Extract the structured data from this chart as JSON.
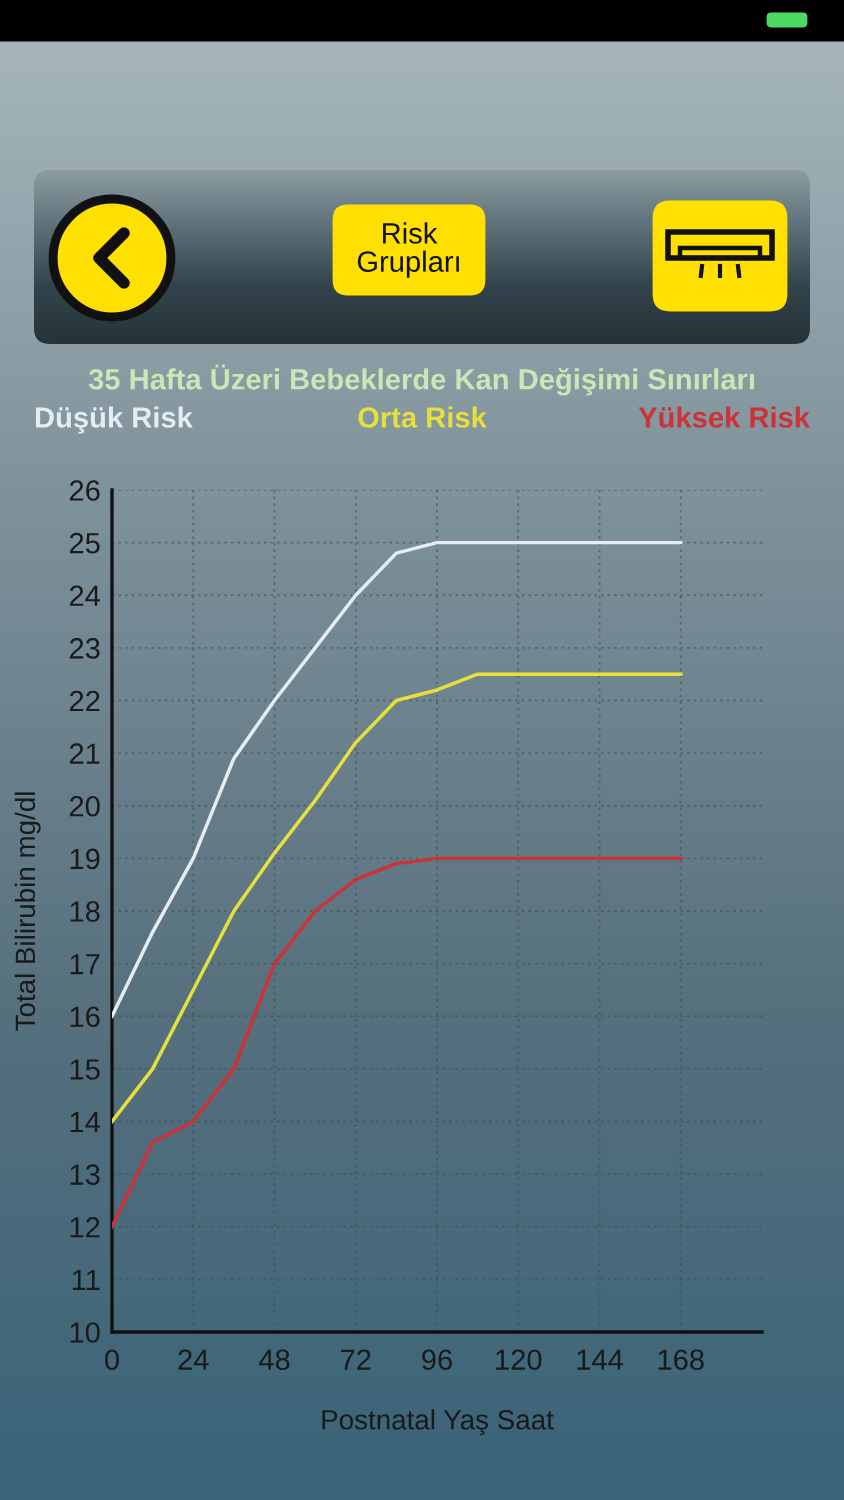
{
  "chart_data": {
    "type": "line",
    "title": "35 Hafta Üzeri Bebeklerde Kan Değişimi Sınırları",
    "xlabel": "Postnatal Yaş Saat",
    "ylabel": "Total Bilirubin mg/dl",
    "x": [
      0,
      12,
      24,
      36,
      48,
      60,
      72,
      84,
      96,
      108,
      168
    ],
    "series": [
      {
        "name": "Düşük Risk",
        "color": "#e6edf0",
        "values": [
          16,
          17.6,
          19,
          20.9,
          22,
          23,
          24,
          24.8,
          25,
          25,
          25
        ]
      },
      {
        "name": "Orta Risk",
        "color": "#e8e03a",
        "values": [
          14,
          15,
          16.5,
          18,
          19.1,
          20.1,
          21.2,
          22,
          22.2,
          22.5,
          22.5
        ]
      },
      {
        "name": "Yüksek Risk",
        "color": "#cc3238",
        "values": [
          12,
          13.6,
          14,
          15,
          17,
          18,
          18.6,
          18.9,
          19,
          19,
          19
        ]
      }
    ],
    "xlim": [
      0,
      192
    ],
    "xticks": [
      0,
      24,
      48,
      72,
      96,
      120,
      144,
      168
    ],
    "ylim": [
      10,
      26
    ],
    "yticks": [
      10,
      11,
      12,
      13,
      14,
      15,
      16,
      17,
      18,
      19,
      20,
      21,
      22,
      23,
      24,
      25,
      26
    ],
    "grid": true,
    "legend": "top",
    "marker": "none",
    "line_style": "solid",
    "annotations": [
      "Risk\nGrupları"
    ]
  }
}
